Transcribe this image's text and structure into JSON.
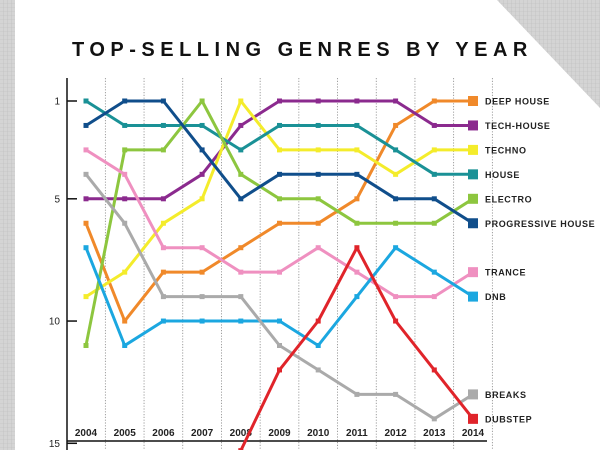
{
  "chart_data": {
    "type": "line",
    "title": "TOP-SELLING GENRES BY YEAR",
    "x": [
      "2004",
      "2005",
      "2006",
      "2007",
      "2008",
      "2009",
      "2010",
      "2011",
      "2012",
      "2013",
      "2014"
    ],
    "ylim": [
      1,
      15
    ],
    "y_inverted": true,
    "yticks": [
      "1",
      "5",
      "10",
      "15"
    ],
    "grid": "vertical dotted lines between years",
    "legend": "right, at series end points",
    "series": [
      {
        "name": "DEEP HOUSE",
        "color": "#f0892a",
        "values": [
          6,
          10,
          8,
          8,
          7,
          6,
          6,
          5,
          2,
          1,
          1
        ]
      },
      {
        "name": "TECH-HOUSE",
        "color": "#8b2a8e",
        "values": [
          5,
          5,
          5,
          4,
          2,
          1,
          1,
          1,
          1,
          2,
          2
        ]
      },
      {
        "name": "TECHNO",
        "color": "#f4ec2b",
        "values": [
          9,
          8,
          6,
          5,
          1,
          3,
          3,
          3,
          4,
          3,
          3
        ]
      },
      {
        "name": "HOUSE",
        "color": "#1a9196",
        "values": [
          1,
          2,
          2,
          2,
          3,
          2,
          2,
          2,
          3,
          4,
          4
        ]
      },
      {
        "name": "ELECTRO",
        "color": "#8dc63f",
        "values": [
          11,
          3,
          3,
          1,
          4,
          5,
          5,
          6,
          6,
          6,
          5
        ]
      },
      {
        "name": "PROGRESSIVE HOUSE",
        "color": "#104e8b",
        "values": [
          2,
          1,
          1,
          3,
          5,
          4,
          4,
          4,
          5,
          5,
          6
        ]
      },
      {
        "name": "TRANCE",
        "color": "#ef90c0",
        "values": [
          3,
          4,
          7,
          7,
          8,
          8,
          7,
          8,
          9,
          9,
          8
        ]
      },
      {
        "name": "DNB",
        "color": "#1ba7e0",
        "values": [
          7,
          11,
          10,
          10,
          10,
          10,
          11,
          9,
          7,
          8,
          9
        ]
      },
      {
        "name": "BREAKS",
        "color": "#aaaaaa",
        "values": [
          4,
          6,
          9,
          9,
          9,
          11,
          12,
          13,
          13,
          14,
          13
        ]
      },
      {
        "name": "DUBSTEP",
        "color": "#e0242a",
        "values": [
          null,
          null,
          null,
          null,
          15.3,
          12,
          10,
          7,
          10,
          12,
          14
        ]
      }
    ]
  }
}
